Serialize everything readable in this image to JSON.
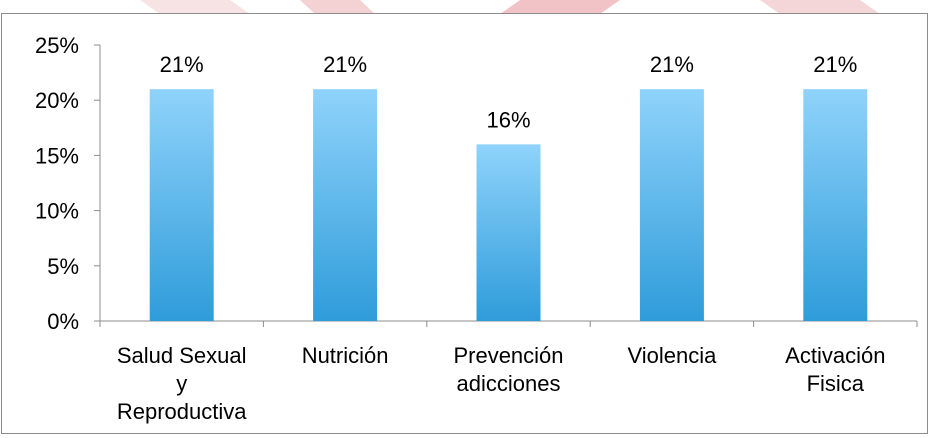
{
  "chart_data": {
    "type": "bar",
    "categories": [
      [
        "Salud Sexual",
        "y",
        "Reproductiva"
      ],
      [
        "Nutrición"
      ],
      [
        "Prevención",
        "adicciones"
      ],
      [
        "Violencia"
      ],
      [
        "Activación",
        "Fisica"
      ]
    ],
    "values": [
      21,
      21,
      16,
      21,
      21
    ],
    "data_labels": [
      "21%",
      "21%",
      "16%",
      "21%",
      "21%"
    ],
    "ylim": [
      0,
      25
    ],
    "yticks": [
      0,
      5,
      10,
      15,
      20,
      25
    ],
    "ytick_labels": [
      "0%",
      "5%",
      "10%",
      "15%",
      "20%",
      "25%"
    ],
    "title": "",
    "xlabel": "",
    "ylabel": "",
    "grid": false,
    "legend": "none",
    "bar_color_top": "#8fd3fb",
    "bar_color_bottom": "#2f9cda",
    "axis_color": "#8c8c8c"
  }
}
